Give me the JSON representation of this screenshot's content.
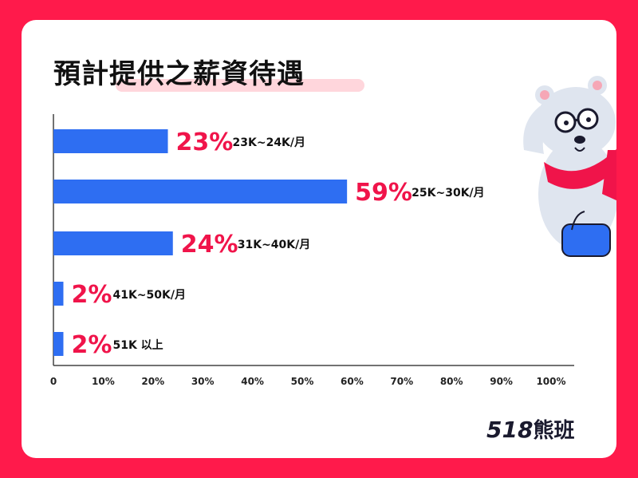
{
  "title": "預計提供之薪資待遇",
  "brand": {
    "number": "518",
    "name": "熊班"
  },
  "colors": {
    "bar": "#2e6ef2",
    "percent": "#f0144a",
    "background": "#ff1a4b"
  },
  "chart_data": {
    "type": "bar",
    "orientation": "horizontal",
    "categories": [
      "23K~24K/月",
      "25K~30K/月",
      "31K~40K/月",
      "41K~50K/月",
      "51K 以上"
    ],
    "values": [
      23,
      59,
      24,
      2,
      2
    ],
    "value_labels": [
      "23%",
      "59%",
      "24%",
      "2%",
      "2%"
    ],
    "xlim": [
      0,
      100
    ],
    "x_ticks": [
      "0",
      "10%",
      "20%",
      "30%",
      "40%",
      "50%",
      "60%",
      "70%",
      "80%",
      "90%",
      "100%"
    ],
    "grid": false
  }
}
